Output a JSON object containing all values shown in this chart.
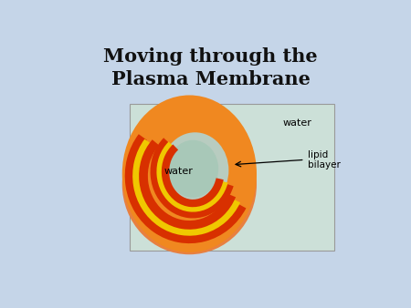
{
  "title_line1": "Moving through the",
  "title_line2": "Plasma Membrane",
  "background_color": "#c5d5e8",
  "title_color": "#111111",
  "title_fontsize": 15,
  "image_box_color": "#cce0d8",
  "label_water_outer": "water",
  "label_water_inner": "water",
  "label_lipid": "lipid\nbilayer",
  "orange_outer": "#e86010",
  "orange_mid": "#f08820",
  "orange_body": "#e88040",
  "red_bead": "#d83000",
  "yellow_tails": "#f0c800",
  "water_inner_color": "#a8c8b8",
  "box_edge_color": "#999999",
  "arrow_color": "#111111"
}
